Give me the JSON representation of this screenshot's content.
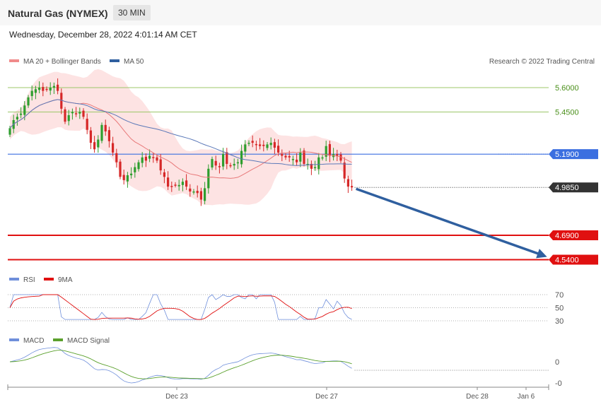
{
  "header": {
    "title": "Natural Gas (NYMEX)",
    "timeframe": "30 MIN"
  },
  "datetime": "Wednesday, December 28, 2022 4:01:14 AM CET",
  "legend": {
    "ma20": "MA 20 + Bollinger Bands",
    "ma50": "MA 50"
  },
  "copyright": "Research © 2022 Trading Central",
  "colors": {
    "up": "#2e9e2e",
    "down": "#d62828",
    "ma20": "#e8797a",
    "ma50": "#5a78b8",
    "band": "#fde3e3",
    "pivot": "#3b6fe0",
    "support": "#e01010",
    "resistance": "#9cc76a",
    "arrow": "#2f5f9f",
    "rsi": "#6f8fdb",
    "nine_ma": "#e01010",
    "macd": "#6f8fdb",
    "signal": "#5aa02c"
  },
  "chart_data": {
    "type": "candlestick",
    "ylim": [
      4.5,
      5.66
    ],
    "x_labels": [
      "Dec 23",
      "Dec 27",
      "Dec 28",
      "Jan 6"
    ],
    "levels": [
      {
        "name": "resistance-2",
        "value": 5.6,
        "label": "5.6000",
        "kind": "resistance"
      },
      {
        "name": "resistance-1",
        "value": 5.45,
        "label": "5.4500",
        "kind": "resistance"
      },
      {
        "name": "pivot",
        "value": 5.19,
        "label": "5.1900",
        "kind": "pivot"
      },
      {
        "name": "last-price",
        "value": 4.985,
        "label": "4.9850",
        "kind": "last"
      },
      {
        "name": "support-1",
        "value": 4.69,
        "label": "4.6900",
        "kind": "support"
      },
      {
        "name": "support-2",
        "value": 4.54,
        "label": "4.5400",
        "kind": "support"
      }
    ],
    "close": [
      5.35,
      5.4,
      5.42,
      5.44,
      5.49,
      5.54,
      5.58,
      5.59,
      5.6,
      5.58,
      5.59,
      5.6,
      5.61,
      5.58,
      5.47,
      5.39,
      5.43,
      5.45,
      5.44,
      5.45,
      5.42,
      5.34,
      5.26,
      5.22,
      5.28,
      5.37,
      5.33,
      5.27,
      5.2,
      5.14,
      5.05,
      5.03,
      5.06,
      5.07,
      5.11,
      5.14,
      5.17,
      5.15,
      5.18,
      5.17,
      5.15,
      5.09,
      5.05,
      4.99,
      4.99,
      5.0,
      5.0,
      5.02,
      4.99,
      4.96,
      4.96,
      4.95,
      4.91,
      4.98,
      5.1,
      5.16,
      5.12,
      5.11,
      5.19,
      5.13,
      5.12,
      5.13,
      5.14,
      5.21,
      5.25,
      5.26,
      5.26,
      5.25,
      5.24,
      5.24,
      5.25,
      5.26,
      5.23,
      5.2,
      5.18,
      5.17,
      5.17,
      5.16,
      5.14,
      5.2,
      5.13,
      5.13,
      5.1,
      5.11,
      5.17,
      5.17,
      5.24,
      5.18,
      5.19,
      5.18,
      5.15,
      5.04,
      4.99,
      4.985
    ],
    "rsi": {
      "levels": [
        70,
        50,
        30
      ]
    },
    "macd": {
      "zero_label": "0",
      "low_label": "-0"
    }
  },
  "lower_legends": {
    "rsi": "RSI",
    "nine_ma": "9MA",
    "macd": "MACD",
    "macd_signal": "MACD Signal"
  }
}
